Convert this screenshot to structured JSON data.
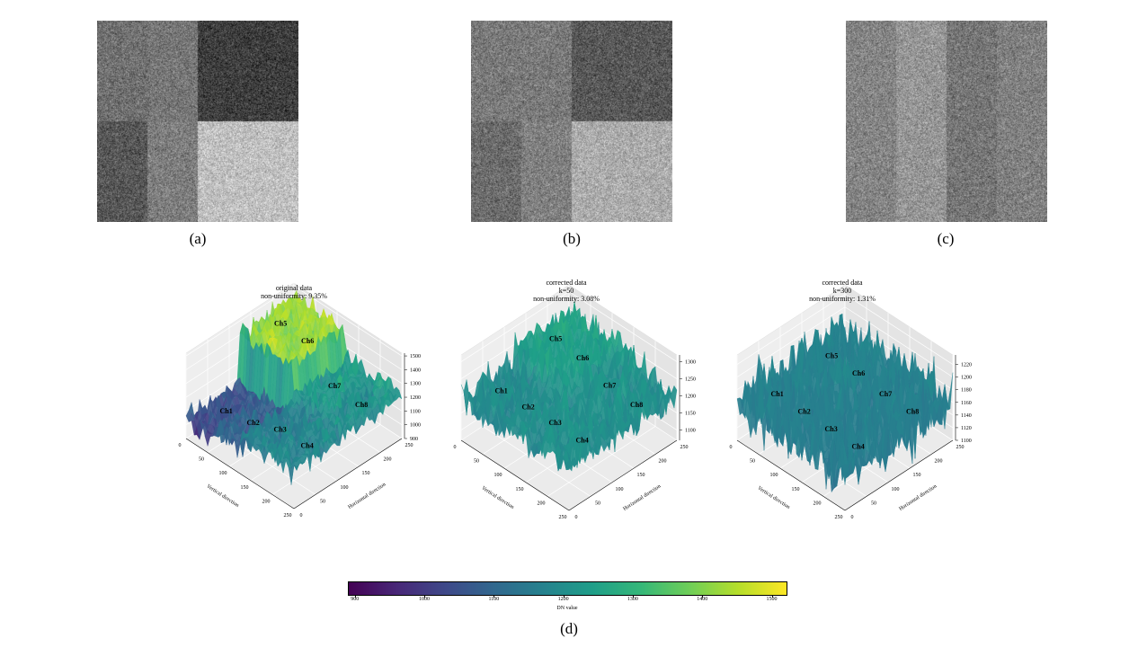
{
  "figure": {
    "panels": [
      {
        "caption": "(a)"
      },
      {
        "caption": "(b)"
      },
      {
        "caption": "(c)"
      }
    ],
    "bottom_caption": "(d)"
  },
  "chart_data": [
    {
      "type": "surface3d",
      "title_lines": [
        "original data",
        "non-uniformity: 9.35%"
      ],
      "xlabel": "Vertical direction",
      "ylabel": "Horizontal direction",
      "xticks": [
        0,
        50,
        100,
        150,
        200,
        250
      ],
      "yticks": [
        0,
        50,
        100,
        150,
        200,
        250
      ],
      "zlim": [
        900,
        1520
      ],
      "zticks": [
        900,
        1000,
        1100,
        1200,
        1300,
        1400,
        1500
      ],
      "channels": [
        "Ch1",
        "Ch2",
        "Ch3",
        "Ch4",
        "Ch5",
        "Ch6",
        "Ch7",
        "Ch8"
      ],
      "channel_means": [
        1040,
        1080,
        1160,
        1170,
        1420,
        1420,
        1220,
        1210
      ]
    },
    {
      "type": "surface3d",
      "title_lines": [
        "corrected data",
        "k=50",
        "non-uniformity: 3.08%"
      ],
      "xlabel": "Vertical direction",
      "ylabel": "Horizontal direction",
      "xticks": [
        0,
        50,
        100,
        150,
        200,
        250
      ],
      "yticks": [
        0,
        50,
        100,
        150,
        200,
        250
      ],
      "zlim": [
        1070,
        1320
      ],
      "zticks": [
        1100,
        1150,
        1200,
        1250,
        1300
      ],
      "channels": [
        "Ch1",
        "Ch2",
        "Ch3",
        "Ch4",
        "Ch5",
        "Ch6",
        "Ch7",
        "Ch8"
      ],
      "channel_means": [
        1190,
        1195,
        1200,
        1200,
        1240,
        1235,
        1205,
        1200
      ]
    },
    {
      "type": "surface3d",
      "title_lines": [
        "corrected data",
        "k=300",
        "non-uniformity: 1.31%"
      ],
      "xlabel": "Vertical direction",
      "ylabel": "Horizontal direction",
      "xticks": [
        0,
        50,
        100,
        150,
        200,
        250
      ],
      "yticks": [
        0,
        50,
        100,
        150,
        200,
        250
      ],
      "zlim": [
        1100,
        1235
      ],
      "zticks": [
        1100,
        1120,
        1140,
        1160,
        1180,
        1200,
        1220
      ],
      "channels": [
        "Ch1",
        "Ch2",
        "Ch3",
        "Ch4",
        "Ch5",
        "Ch6",
        "Ch7",
        "Ch8"
      ],
      "channel_means": [
        1160,
        1160,
        1160,
        1160,
        1165,
        1165,
        1160,
        1160
      ]
    }
  ],
  "colorbar": {
    "colormap": "viridis",
    "range": [
      890,
      1520
    ],
    "ticks": [
      900,
      1000,
      1100,
      1200,
      1300,
      1400,
      1500
    ],
    "label": "DN value"
  }
}
